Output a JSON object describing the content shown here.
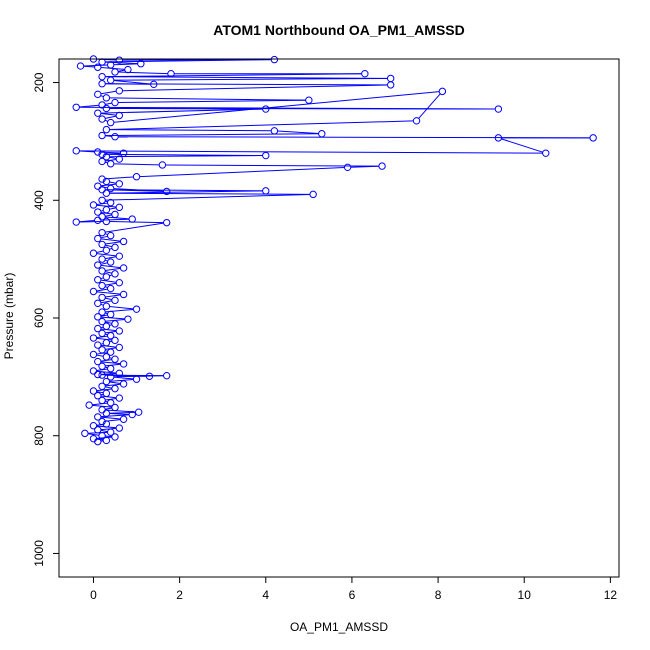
{
  "chart_data": {
    "type": "scatter",
    "title": "ATOM1 Northbound OA_PM1_AMSSD",
    "xlabel": "OA_PM1_AMSSD",
    "ylabel": "Pressure (mbar)",
    "xlim": [
      -0.8,
      12.2
    ],
    "ylim": [
      1040,
      160
    ],
    "y_reversed": true,
    "grid": false,
    "legend": "none",
    "xticks": [
      0,
      2,
      4,
      6,
      8,
      10,
      12
    ],
    "yticks": [
      200,
      400,
      600,
      800,
      1000
    ],
    "marker": "open-circle",
    "connected": true,
    "color": "#0000ff",
    "series": [
      {
        "points": [
          [
            0.1,
            810
          ],
          [
            0.3,
            808
          ],
          [
            0.0,
            805
          ],
          [
            0.5,
            802
          ],
          [
            0.2,
            800
          ],
          [
            -0.2,
            796
          ],
          [
            0.4,
            794
          ],
          [
            0.1,
            790
          ],
          [
            0.6,
            787
          ],
          [
            0.0,
            783
          ],
          [
            0.3,
            780
          ],
          [
            0.2,
            776
          ],
          [
            0.7,
            772
          ],
          [
            0.1,
            768
          ],
          [
            0.9,
            764
          ],
          [
            0.3,
            762
          ],
          [
            1.05,
            760
          ],
          [
            0.2,
            756
          ],
          [
            0.5,
            752
          ],
          [
            -0.1,
            748
          ],
          [
            0.4,
            744
          ],
          [
            0.2,
            740
          ],
          [
            0.6,
            736
          ],
          [
            0.1,
            732
          ],
          [
            0.3,
            728
          ],
          [
            0.0,
            724
          ],
          [
            0.5,
            720
          ],
          [
            0.2,
            716
          ],
          [
            0.7,
            712
          ],
          [
            0.3,
            708
          ],
          [
            1.0,
            704
          ],
          [
            0.4,
            700
          ],
          [
            1.7,
            698
          ],
          [
            0.2,
            697
          ],
          [
            1.3,
            699
          ],
          [
            0.1,
            696
          ],
          [
            0.6,
            694
          ],
          [
            0.0,
            690
          ],
          [
            0.4,
            686
          ],
          [
            0.2,
            682
          ],
          [
            0.7,
            678
          ],
          [
            0.1,
            674
          ],
          [
            0.5,
            670
          ],
          [
            0.3,
            666
          ],
          [
            0.0,
            662
          ],
          [
            0.4,
            658
          ],
          [
            0.2,
            654
          ],
          [
            0.6,
            650
          ],
          [
            0.1,
            646
          ],
          [
            0.3,
            642
          ],
          [
            0.5,
            638
          ],
          [
            0.0,
            634
          ],
          [
            0.4,
            630
          ],
          [
            0.2,
            626
          ],
          [
            0.6,
            622
          ],
          [
            0.1,
            618
          ],
          [
            0.3,
            614
          ],
          [
            0.5,
            610
          ],
          [
            0.2,
            606
          ],
          [
            0.8,
            602
          ],
          [
            0.1,
            598
          ],
          [
            0.4,
            594
          ],
          [
            0.2,
            590
          ],
          [
            1.0,
            585
          ],
          [
            0.3,
            580
          ],
          [
            0.1,
            575
          ],
          [
            0.5,
            570
          ],
          [
            0.2,
            565
          ],
          [
            0.7,
            560
          ],
          [
            0.0,
            555
          ],
          [
            0.4,
            550
          ],
          [
            0.2,
            545
          ],
          [
            0.6,
            540
          ],
          [
            0.1,
            535
          ],
          [
            0.3,
            530
          ],
          [
            0.5,
            525
          ],
          [
            0.2,
            520
          ],
          [
            0.7,
            515
          ],
          [
            0.1,
            510
          ],
          [
            0.4,
            505
          ],
          [
            0.2,
            500
          ],
          [
            0.6,
            495
          ],
          [
            0.0,
            490
          ],
          [
            0.3,
            485
          ],
          [
            0.5,
            480
          ],
          [
            0.2,
            475
          ],
          [
            0.7,
            470
          ],
          [
            0.1,
            465
          ],
          [
            0.4,
            460
          ],
          [
            0.2,
            455
          ],
          [
            1.7,
            438
          ],
          [
            0.3,
            436
          ],
          [
            -0.4,
            437
          ],
          [
            0.1,
            434
          ],
          [
            0.9,
            432
          ],
          [
            0.2,
            428
          ],
          [
            0.5,
            424
          ],
          [
            0.1,
            420
          ],
          [
            0.3,
            416
          ],
          [
            0.6,
            412
          ],
          [
            0.0,
            408
          ],
          [
            0.4,
            404
          ],
          [
            0.2,
            400
          ],
          [
            5.1,
            390
          ],
          [
            0.3,
            388
          ],
          [
            4.0,
            384
          ],
          [
            0.2,
            382
          ],
          [
            1.7,
            385
          ],
          [
            0.4,
            380
          ],
          [
            0.1,
            376
          ],
          [
            0.6,
            372
          ],
          [
            0.3,
            368
          ],
          [
            0.2,
            364
          ],
          [
            1.0,
            360
          ],
          [
            5.9,
            344
          ],
          [
            6.7,
            342
          ],
          [
            1.6,
            340
          ],
          [
            0.4,
            338
          ],
          [
            0.2,
            334
          ],
          [
            0.6,
            330
          ],
          [
            0.3,
            326
          ],
          [
            4.0,
            324
          ],
          [
            0.2,
            322
          ],
          [
            0.7,
            320
          ],
          [
            0.1,
            318
          ],
          [
            -0.4,
            316
          ],
          [
            10.5,
            320
          ],
          [
            9.4,
            294
          ],
          [
            11.6,
            294
          ],
          [
            0.5,
            292
          ],
          [
            0.2,
            290
          ],
          [
            5.3,
            287
          ],
          [
            4.2,
            282
          ],
          [
            0.3,
            280
          ],
          [
            7.5,
            265
          ],
          [
            8.1,
            215
          ],
          [
            0.4,
            268
          ],
          [
            0.2,
            262
          ],
          [
            0.6,
            256
          ],
          [
            0.1,
            252
          ],
          [
            4.0,
            245
          ],
          [
            0.3,
            244
          ],
          [
            9.4,
            245
          ],
          [
            -0.4,
            242
          ],
          [
            0.2,
            238
          ],
          [
            0.5,
            234
          ],
          [
            5.0,
            230
          ],
          [
            0.3,
            226
          ],
          [
            0.1,
            220
          ],
          [
            0.6,
            214
          ],
          [
            6.9,
            204
          ],
          [
            0.2,
            202
          ],
          [
            1.4,
            203
          ],
          [
            0.4,
            196
          ],
          [
            6.9,
            193
          ],
          [
            0.2,
            190
          ],
          [
            6.3,
            185
          ],
          [
            1.8,
            185
          ],
          [
            0.5,
            182
          ],
          [
            0.8,
            178
          ],
          [
            0.1,
            174
          ],
          [
            -0.3,
            172
          ],
          [
            0.4,
            170
          ],
          [
            1.1,
            168
          ],
          [
            0.2,
            165
          ],
          [
            4.2,
            161
          ],
          [
            0.6,
            162
          ],
          [
            0.0,
            160
          ]
        ]
      }
    ]
  }
}
